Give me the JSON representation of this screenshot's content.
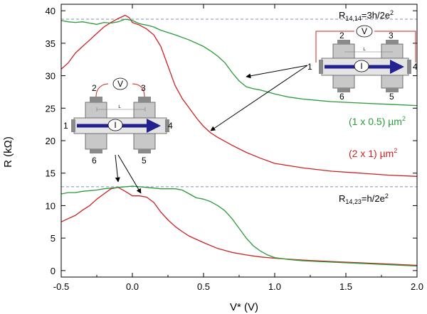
{
  "chart_data": {
    "type": "line",
    "xlabel": "V* (V)",
    "ylabel": "R (kΩ)",
    "xlim": [
      -0.5,
      2.0
    ],
    "ylim": [
      -1,
      41
    ],
    "xticks": [
      -0.5,
      0.0,
      0.5,
      1.0,
      1.5,
      2.0
    ],
    "xtick_labels": [
      "-0.5",
      "0.0",
      "0.5",
      "1.0",
      "1.5",
      "2.0"
    ],
    "yticks": [
      0,
      5,
      10,
      15,
      20,
      25,
      30,
      35,
      40
    ],
    "ytick_labels": [
      "0",
      "5",
      "10",
      "15",
      "20",
      "25",
      "30",
      "35",
      "40"
    ],
    "reference_lines": [
      {
        "y": 38.7,
        "label": "R14,14=3h/2e2",
        "color": "#7f8fb8",
        "style": "dashed"
      },
      {
        "y": 12.9,
        "label": "R14,23=h/2e2",
        "color": "#7f8fb8",
        "style": "dashed"
      }
    ],
    "series": [
      {
        "name": "(2 x 1) µm2 R14,14",
        "color": "#cc2222",
        "x": [
          -0.5,
          -0.45,
          -0.4,
          -0.35,
          -0.3,
          -0.25,
          -0.2,
          -0.15,
          -0.1,
          -0.05,
          -0.02,
          0.0,
          0.05,
          0.1,
          0.15,
          0.2,
          0.25,
          0.3,
          0.35,
          0.4,
          0.45,
          0.5,
          0.55,
          0.6,
          0.7,
          0.8,
          0.9,
          1.0,
          1.2,
          1.4,
          1.6,
          1.8,
          2.0
        ],
        "y": [
          31,
          32,
          33.5,
          34.5,
          35.5,
          36.5,
          37.5,
          38.2,
          38.8,
          39.3,
          38.9,
          38.2,
          37.8,
          37.2,
          36.3,
          34.5,
          31.5,
          28.5,
          26.5,
          25,
          23.5,
          22.2,
          21.2,
          20.5,
          19.3,
          18.2,
          17.3,
          16.5,
          15.8,
          15.3,
          15.0,
          14.7,
          14.5
        ]
      },
      {
        "name": "(1 x 0.5) µm2 R14,14",
        "color": "#2a9a3a",
        "x": [
          -0.5,
          -0.45,
          -0.4,
          -0.35,
          -0.3,
          -0.25,
          -0.2,
          -0.15,
          -0.1,
          -0.05,
          0.0,
          0.05,
          0.1,
          0.15,
          0.2,
          0.3,
          0.4,
          0.5,
          0.55,
          0.6,
          0.65,
          0.7,
          0.75,
          0.8,
          0.85,
          0.9,
          1.0,
          1.1,
          1.2,
          1.3,
          1.4,
          1.6,
          1.8,
          2.0
        ],
        "y": [
          38.5,
          38.3,
          38.2,
          38.3,
          38.1,
          37.9,
          38.2,
          38.1,
          38.3,
          38.7,
          38.5,
          38.0,
          37.8,
          37.5,
          37.0,
          36.3,
          35.5,
          34.5,
          33.8,
          33.0,
          32.0,
          30.5,
          29.2,
          28.3,
          28.0,
          27.8,
          27.2,
          26.7,
          26.4,
          26.2,
          26.0,
          25.8,
          25.6,
          25.4
        ]
      },
      {
        "name": "(2 x 1) µm2 R14,23",
        "color": "#cc2222",
        "x": [
          -0.5,
          -0.45,
          -0.4,
          -0.35,
          -0.3,
          -0.25,
          -0.2,
          -0.15,
          -0.1,
          -0.05,
          0.0,
          0.05,
          0.1,
          0.15,
          0.2,
          0.25,
          0.3,
          0.35,
          0.4,
          0.5,
          0.6,
          0.7,
          0.8,
          0.9,
          1.0,
          1.2,
          1.4,
          1.6,
          1.8,
          2.0
        ],
        "y": [
          7.5,
          8.0,
          8.5,
          9.3,
          10.0,
          11.0,
          11.8,
          12.6,
          12.8,
          12.2,
          11.5,
          11.5,
          11.3,
          10.5,
          9.0,
          7.8,
          6.8,
          6.0,
          5.3,
          4.3,
          3.4,
          2.8,
          2.4,
          2.1,
          1.9,
          1.6,
          1.4,
          1.2,
          1.0,
          0.8
        ]
      },
      {
        "name": "(1 x 0.5) µm2 R14,23",
        "color": "#2a9a3a",
        "x": [
          -0.5,
          -0.45,
          -0.4,
          -0.35,
          -0.3,
          -0.25,
          -0.2,
          -0.1,
          0.0,
          0.1,
          0.2,
          0.3,
          0.35,
          0.4,
          0.45,
          0.5,
          0.55,
          0.6,
          0.65,
          0.7,
          0.75,
          0.8,
          0.85,
          0.9,
          0.95,
          1.0,
          1.1,
          1.2,
          1.4,
          1.6,
          1.8,
          2.0
        ],
        "y": [
          11.8,
          12.0,
          12.0,
          12.2,
          12.3,
          12.4,
          12.6,
          12.8,
          13.0,
          12.8,
          12.6,
          12.6,
          12.4,
          11.8,
          11.2,
          11.0,
          10.6,
          10.0,
          9.2,
          8.0,
          6.5,
          5.0,
          3.8,
          3.0,
          2.4,
          2.0,
          1.7,
          1.5,
          1.3,
          1.1,
          0.9,
          0.7
        ]
      }
    ],
    "annotations": [
      {
        "text": "R14,14=3h/2e2",
        "color": "#000000"
      },
      {
        "text": "R14,23=h/2e2",
        "color": "#000000"
      },
      {
        "text": "(1 x 0.5) µm2",
        "color": "#2a9a3a"
      },
      {
        "text": "(2 x 1) µm2",
        "color": "#cc2222"
      }
    ],
    "insets": [
      {
        "terminals": [
          "1",
          "2",
          "3",
          "4",
          "5",
          "6"
        ],
        "voltage": "V",
        "current": "I",
        "length": "L"
      },
      {
        "terminals": [
          "1",
          "2",
          "3",
          "4",
          "5",
          "6"
        ],
        "voltage": "V",
        "current": "I",
        "length": "L"
      }
    ]
  },
  "labels": {
    "ref_top_base": "R",
    "ref_top_sub": "14,14",
    "ref_top_rest": "=3h/2e",
    "ref_top_sup": "2",
    "ref_bot_base": "R",
    "ref_bot_sub": "14,23",
    "ref_bot_rest": "=h/2e",
    "ref_bot_sup": "2",
    "green_main": "(1 x 0.5) µm",
    "green_sup": "2",
    "red_main": "(2 x 1) µm",
    "red_sup": "2"
  }
}
